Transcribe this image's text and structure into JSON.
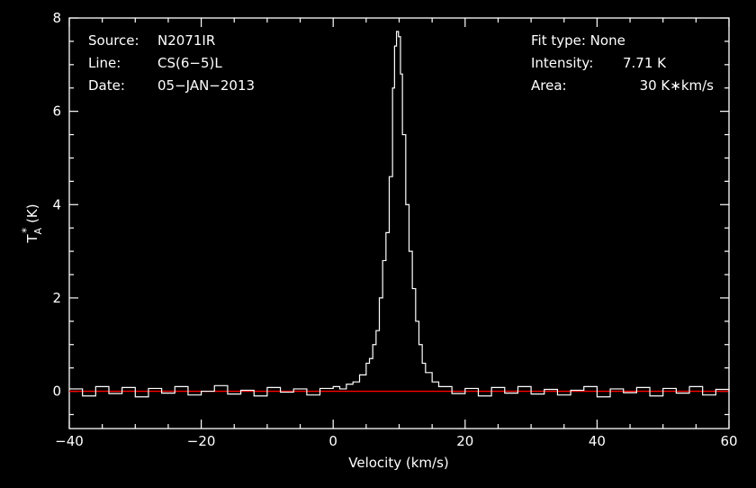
{
  "header": {
    "source_key": "Source:",
    "source_val": "N2071IR",
    "line_key": "Line:",
    "line_val": "CS(6−5)L",
    "date_key": "Date:",
    "date_val": "05−JAN−2013",
    "fit_label": "Fit type: None",
    "intensity_key": "Intensity:",
    "intensity_val": "7.71 K",
    "area_key": "Area:",
    "area_val": "30 K∗km/s"
  },
  "colors": {
    "background": "#000000",
    "axes": "#ffffff",
    "spectrum": "#ffffff",
    "baseline": "#ff0000"
  },
  "chart_data": {
    "type": "line",
    "title": "",
    "xlabel": "Velocity (km/s)",
    "ylabel": "T",
    "ylabel_sub": "A",
    "ylabel_sup": "*",
    "ylabel_unit": "(K)",
    "xlim": [
      -40,
      60
    ],
    "ylim": [
      -0.8,
      8
    ],
    "x_ticks": [
      -40,
      -20,
      0,
      20,
      40,
      60
    ],
    "x_tick_labels": [
      "−40",
      "−20",
      "0",
      "20",
      "40",
      "60"
    ],
    "y_ticks": [
      0,
      2,
      4,
      6,
      8
    ],
    "y_tick_labels": [
      "0",
      "2",
      "4",
      "6",
      "8"
    ],
    "grid": false,
    "baseline_y": 0,
    "series": [
      {
        "x": [
          -40,
          -38,
          -36,
          -34,
          -32,
          -30,
          -28,
          -26,
          -24,
          -22,
          -20,
          -18,
          -16,
          -14,
          -12,
          -10,
          -8,
          -6,
          -4,
          -2,
          0,
          1,
          2,
          3,
          4,
          5,
          5.5,
          6,
          6.5,
          7,
          7.5,
          8,
          8.5,
          9,
          9.3,
          9.6,
          9.9,
          10.2,
          10.5,
          11,
          11.5,
          12,
          12.5,
          13,
          13.5,
          14,
          15,
          16,
          18,
          20,
          22,
          24,
          26,
          28,
          30,
          32,
          34,
          36,
          38,
          40,
          42,
          44,
          46,
          48,
          50,
          52,
          54,
          56,
          58,
          60
        ],
        "y": [
          0.05,
          -0.1,
          0.1,
          -0.05,
          0.08,
          -0.12,
          0.06,
          -0.04,
          0.1,
          -0.08,
          0.0,
          0.12,
          -0.06,
          0.02,
          -0.1,
          0.08,
          -0.02,
          0.05,
          -0.08,
          0.06,
          0.1,
          0.05,
          0.15,
          0.2,
          0.35,
          0.6,
          0.7,
          1.0,
          1.3,
          2.0,
          2.8,
          3.4,
          4.6,
          6.5,
          7.4,
          7.71,
          7.6,
          6.8,
          5.5,
          4.0,
          3.0,
          2.2,
          1.5,
          1.0,
          0.6,
          0.4,
          0.2,
          0.1,
          -0.05,
          0.06,
          -0.1,
          0.08,
          -0.04,
          0.1,
          -0.06,
          0.04,
          -0.08,
          0.02,
          0.1,
          -0.12,
          0.05,
          -0.03,
          0.08,
          -0.1,
          0.06,
          -0.04,
          0.1,
          -0.08,
          0.04,
          -0.02
        ]
      }
    ]
  }
}
